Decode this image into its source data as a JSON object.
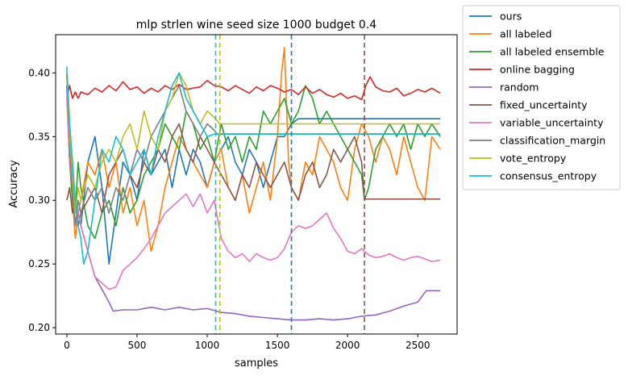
{
  "chart_data": {
    "type": "line",
    "title": "mlp strlen wine seed size 1000 budget 0.4",
    "xlabel": "samples",
    "ylabel": "Accuracy",
    "xlim": [
      -80,
      2780
    ],
    "ylim": [
      0.195,
      0.43
    ],
    "xticks": [
      0,
      500,
      1000,
      1500,
      2000,
      2500
    ],
    "yticks": [
      0.2,
      0.25,
      0.3,
      0.35,
      0.4
    ],
    "xtick_labels": [
      "0",
      "500",
      "1000",
      "1500",
      "2000",
      "2500"
    ],
    "ytick_labels": [
      "0.20",
      "0.25",
      "0.30",
      "0.35",
      "0.40"
    ],
    "grid": false,
    "legend_placement": "outside-top-right",
    "series": [
      {
        "name": "ours",
        "color": "#1f77b4",
        "x": [
          0,
          20,
          60,
          100,
          150,
          200,
          250,
          300,
          350,
          400,
          450,
          500,
          550,
          600,
          650,
          700,
          750,
          800,
          850,
          900,
          950,
          1000,
          1050,
          1100,
          1150,
          1200,
          1250,
          1300,
          1350,
          1400,
          1450,
          1500,
          1550,
          1600,
          1650,
          2000,
          2500,
          2660
        ],
        "y": [
          0.39,
          0.33,
          0.3,
          0.28,
          0.33,
          0.35,
          0.31,
          0.25,
          0.29,
          0.33,
          0.32,
          0.3,
          0.34,
          0.32,
          0.33,
          0.34,
          0.31,
          0.34,
          0.32,
          0.34,
          0.33,
          0.31,
          0.33,
          0.34,
          0.35,
          0.33,
          0.32,
          0.34,
          0.33,
          0.31,
          0.33,
          0.35,
          0.35,
          0.36,
          0.364,
          0.364,
          0.364,
          0.364
        ]
      },
      {
        "name": "all labeled",
        "color": "#ff7f0e",
        "x": [
          0,
          20,
          40,
          60,
          80,
          100,
          150,
          200,
          250,
          300,
          350,
          400,
          450,
          500,
          550,
          600,
          650,
          700,
          750,
          800,
          850,
          900,
          950,
          1000,
          1050,
          1100,
          1150,
          1200,
          1250,
          1300,
          1350,
          1400,
          1450,
          1500,
          1530,
          1550,
          1580,
          1600,
          1650,
          1700,
          1750,
          1800,
          1850,
          1900,
          1950,
          2000,
          2050,
          2100,
          2150,
          2200,
          2250,
          2300,
          2350,
          2400,
          2450,
          2500,
          2550,
          2600,
          2660
        ],
        "y": [
          0.4,
          0.33,
          0.3,
          0.27,
          0.29,
          0.3,
          0.33,
          0.32,
          0.34,
          0.31,
          0.33,
          0.29,
          0.31,
          0.28,
          0.3,
          0.26,
          0.28,
          0.31,
          0.33,
          0.35,
          0.34,
          0.33,
          0.32,
          0.31,
          0.33,
          0.34,
          0.31,
          0.3,
          0.32,
          0.29,
          0.31,
          0.33,
          0.3,
          0.35,
          0.4,
          0.42,
          0.33,
          0.31,
          0.3,
          0.33,
          0.32,
          0.35,
          0.34,
          0.33,
          0.31,
          0.3,
          0.34,
          0.36,
          0.35,
          0.33,
          0.35,
          0.34,
          0.32,
          0.35,
          0.33,
          0.31,
          0.3,
          0.35,
          0.34
        ]
      },
      {
        "name": "all labeled ensemble",
        "color": "#2ca02c",
        "x": [
          0,
          20,
          40,
          60,
          80,
          100,
          150,
          200,
          250,
          300,
          350,
          400,
          450,
          500,
          550,
          600,
          650,
          700,
          750,
          800,
          850,
          900,
          950,
          1000,
          1050,
          1100,
          1150,
          1200,
          1250,
          1300,
          1350,
          1400,
          1450,
          1500,
          1550,
          1600,
          1650,
          1700,
          1750,
          1800,
          1850,
          1900,
          1950,
          2000,
          2050,
          2100,
          2120,
          2150,
          2200,
          2250,
          2300,
          2350,
          2400,
          2450,
          2500,
          2550,
          2600,
          2660
        ],
        "y": [
          0.4,
          0.33,
          0.3,
          0.29,
          0.33,
          0.31,
          0.28,
          0.27,
          0.29,
          0.3,
          0.28,
          0.31,
          0.29,
          0.3,
          0.32,
          0.33,
          0.34,
          0.36,
          0.35,
          0.34,
          0.37,
          0.36,
          0.34,
          0.35,
          0.33,
          0.36,
          0.34,
          0.35,
          0.33,
          0.35,
          0.34,
          0.37,
          0.36,
          0.37,
          0.38,
          0.36,
          0.37,
          0.39,
          0.38,
          0.36,
          0.37,
          0.36,
          0.35,
          0.34,
          0.33,
          0.32,
          0.3,
          0.31,
          0.34,
          0.35,
          0.36,
          0.35,
          0.36,
          0.34,
          0.36,
          0.35,
          0.36,
          0.35
        ]
      },
      {
        "name": "online bagging",
        "color": "#d62728",
        "x": [
          0,
          20,
          40,
          60,
          80,
          100,
          150,
          200,
          250,
          300,
          350,
          400,
          450,
          500,
          550,
          600,
          650,
          700,
          750,
          800,
          850,
          900,
          950,
          1000,
          1050,
          1100,
          1150,
          1200,
          1250,
          1300,
          1350,
          1400,
          1450,
          1500,
          1550,
          1600,
          1650,
          1700,
          1750,
          1800,
          1850,
          1900,
          1950,
          2000,
          2050,
          2100,
          2130,
          2160,
          2200,
          2250,
          2300,
          2350,
          2400,
          2450,
          2500,
          2550,
          2600,
          2660
        ],
        "y": [
          0.38,
          0.39,
          0.38,
          0.385,
          0.38,
          0.385,
          0.383,
          0.388,
          0.385,
          0.39,
          0.386,
          0.393,
          0.387,
          0.389,
          0.384,
          0.388,
          0.385,
          0.39,
          0.387,
          0.391,
          0.387,
          0.388,
          0.389,
          0.394,
          0.39,
          0.389,
          0.386,
          0.39,
          0.387,
          0.384,
          0.389,
          0.386,
          0.39,
          0.388,
          0.385,
          0.387,
          0.383,
          0.389,
          0.384,
          0.387,
          0.383,
          0.381,
          0.384,
          0.38,
          0.382,
          0.379,
          0.39,
          0.397,
          0.389,
          0.386,
          0.385,
          0.388,
          0.382,
          0.384,
          0.387,
          0.385,
          0.388,
          0.384
        ]
      },
      {
        "name": "random",
        "color": "#9467bd",
        "x": [
          0,
          20,
          40,
          60,
          80,
          100,
          150,
          200,
          250,
          300,
          330,
          400,
          500,
          600,
          700,
          800,
          900,
          1000,
          1100,
          1200,
          1300,
          1400,
          1500,
          1600,
          1700,
          1800,
          1900,
          2000,
          2100,
          2200,
          2300,
          2400,
          2500,
          2560,
          2660
        ],
        "y": [
          0.39,
          0.33,
          0.31,
          0.29,
          0.29,
          0.28,
          0.26,
          0.24,
          0.23,
          0.22,
          0.213,
          0.214,
          0.214,
          0.216,
          0.214,
          0.216,
          0.214,
          0.215,
          0.212,
          0.211,
          0.209,
          0.208,
          0.207,
          0.206,
          0.206,
          0.207,
          0.206,
          0.207,
          0.209,
          0.21,
          0.213,
          0.217,
          0.22,
          0.229,
          0.229
        ]
      },
      {
        "name": "fixed_uncertainty",
        "color": "#8c564b",
        "x": [
          0,
          20,
          40,
          60,
          80,
          100,
          150,
          200,
          250,
          300,
          350,
          400,
          450,
          500,
          550,
          600,
          650,
          700,
          750,
          800,
          850,
          900,
          950,
          1000,
          1050,
          1100,
          1150,
          1200,
          1250,
          1300,
          1350,
          1400,
          1450,
          1500,
          1550,
          1600,
          1650,
          1700,
          1750,
          1800,
          1850,
          1900,
          1950,
          2000,
          2050,
          2100,
          2120,
          2200,
          2300,
          2400,
          2500,
          2660
        ],
        "y": [
          0.3,
          0.31,
          0.29,
          0.3,
          0.28,
          0.29,
          0.3,
          0.31,
          0.29,
          0.32,
          0.33,
          0.34,
          0.32,
          0.31,
          0.33,
          0.32,
          0.34,
          0.33,
          0.35,
          0.36,
          0.34,
          0.33,
          0.35,
          0.34,
          0.33,
          0.32,
          0.31,
          0.3,
          0.32,
          0.31,
          0.33,
          0.32,
          0.31,
          0.32,
          0.33,
          0.31,
          0.3,
          0.32,
          0.33,
          0.31,
          0.32,
          0.34,
          0.33,
          0.34,
          0.35,
          0.33,
          0.301,
          0.301,
          0.301,
          0.301,
          0.301,
          0.301
        ]
      },
      {
        "name": "variable_uncertainty",
        "color": "#e377c2",
        "x": [
          0,
          20,
          40,
          60,
          80,
          100,
          150,
          200,
          250,
          300,
          350,
          400,
          450,
          500,
          550,
          600,
          650,
          700,
          750,
          800,
          850,
          900,
          950,
          1000,
          1050,
          1100,
          1150,
          1200,
          1250,
          1300,
          1350,
          1400,
          1450,
          1500,
          1550,
          1600,
          1650,
          1700,
          1750,
          1800,
          1850,
          1900,
          1950,
          2000,
          2050,
          2100,
          2150,
          2200,
          2250,
          2300,
          2350,
          2400,
          2450,
          2500,
          2550,
          2600,
          2660
        ],
        "y": [
          0.38,
          0.33,
          0.31,
          0.3,
          0.29,
          0.28,
          0.26,
          0.24,
          0.235,
          0.23,
          0.232,
          0.245,
          0.25,
          0.255,
          0.262,
          0.27,
          0.28,
          0.29,
          0.295,
          0.3,
          0.305,
          0.295,
          0.305,
          0.29,
          0.3,
          0.27,
          0.26,
          0.255,
          0.258,
          0.252,
          0.258,
          0.255,
          0.253,
          0.255,
          0.262,
          0.275,
          0.28,
          0.278,
          0.28,
          0.285,
          0.29,
          0.278,
          0.27,
          0.26,
          0.258,
          0.262,
          0.257,
          0.255,
          0.256,
          0.258,
          0.255,
          0.253,
          0.255,
          0.256,
          0.254,
          0.252,
          0.253
        ]
      },
      {
        "name": "classification_margin",
        "color": "#7f7f7f",
        "x": [
          0,
          20,
          40,
          60,
          80,
          100,
          150,
          200,
          250,
          300,
          350,
          400,
          450,
          500,
          550,
          600,
          650,
          700,
          750,
          800,
          850,
          900,
          950,
          1000,
          1050,
          1070,
          1200,
          1500,
          2000,
          2500,
          2660
        ],
        "y": [
          0.4,
          0.34,
          0.31,
          0.28,
          0.3,
          0.29,
          0.31,
          0.3,
          0.31,
          0.29,
          0.31,
          0.3,
          0.32,
          0.34,
          0.33,
          0.35,
          0.36,
          0.37,
          0.38,
          0.39,
          0.37,
          0.36,
          0.35,
          0.36,
          0.355,
          0.352,
          0.352,
          0.352,
          0.352,
          0.352,
          0.352
        ]
      },
      {
        "name": "vote_entropy",
        "color": "#bcbd22",
        "x": [
          0,
          20,
          40,
          60,
          80,
          100,
          150,
          200,
          250,
          300,
          350,
          400,
          450,
          500,
          550,
          600,
          650,
          700,
          750,
          800,
          850,
          900,
          950,
          1000,
          1050,
          1090,
          1200,
          1500,
          2000,
          2500,
          2660
        ],
        "y": [
          0.4,
          0.35,
          0.32,
          0.29,
          0.31,
          0.3,
          0.32,
          0.31,
          0.33,
          0.34,
          0.33,
          0.35,
          0.36,
          0.34,
          0.37,
          0.35,
          0.34,
          0.37,
          0.38,
          0.4,
          0.39,
          0.37,
          0.36,
          0.37,
          0.365,
          0.36,
          0.36,
          0.36,
          0.36,
          0.36,
          0.36
        ]
      },
      {
        "name": "consensus_entropy",
        "color": "#17becf",
        "x": [
          0,
          20,
          40,
          60,
          80,
          100,
          120,
          150,
          200,
          250,
          300,
          350,
          400,
          450,
          500,
          550,
          600,
          650,
          700,
          750,
          800,
          850,
          900,
          950,
          1000,
          1050,
          1100,
          1500,
          2000,
          2500,
          2660
        ],
        "y": [
          0.405,
          0.36,
          0.33,
          0.3,
          0.28,
          0.27,
          0.25,
          0.26,
          0.3,
          0.34,
          0.33,
          0.35,
          0.34,
          0.32,
          0.33,
          0.34,
          0.32,
          0.35,
          0.37,
          0.39,
          0.4,
          0.38,
          0.37,
          0.36,
          0.35,
          0.352,
          0.352,
          0.352,
          0.352,
          0.352,
          0.352
        ]
      }
    ],
    "vlines": [
      {
        "x": 1060,
        "color": "#17becf"
      },
      {
        "x": 1090,
        "color": "#bcbd22"
      },
      {
        "x": 1600,
        "color": "#1f77b4"
      },
      {
        "x": 2120,
        "color": "#8c564b"
      }
    ]
  }
}
